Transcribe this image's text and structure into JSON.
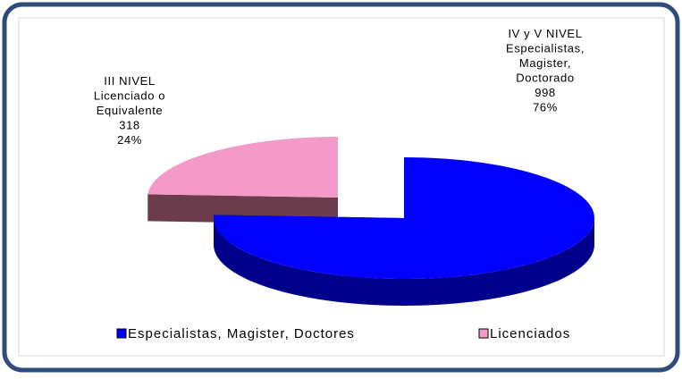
{
  "chart_data": {
    "type": "pie3d",
    "categories": [
      "Especialistas, Magister, Doctores",
      "Licenciados"
    ],
    "values": [
      998,
      318
    ],
    "percent_labels": [
      "76%",
      "24%"
    ],
    "label_lines": [
      [
        "IV y V NIVEL",
        "Especialistas,",
        "Magister,",
        "Doctorado"
      ],
      [
        "III NIVEL",
        "Licenciado o",
        "Equivalente"
      ]
    ],
    "colors": [
      "#0000ff",
      "#f39ac8"
    ],
    "side_colors": [
      "#00008a",
      "#6b3c4c"
    ],
    "legend": "bottom"
  }
}
